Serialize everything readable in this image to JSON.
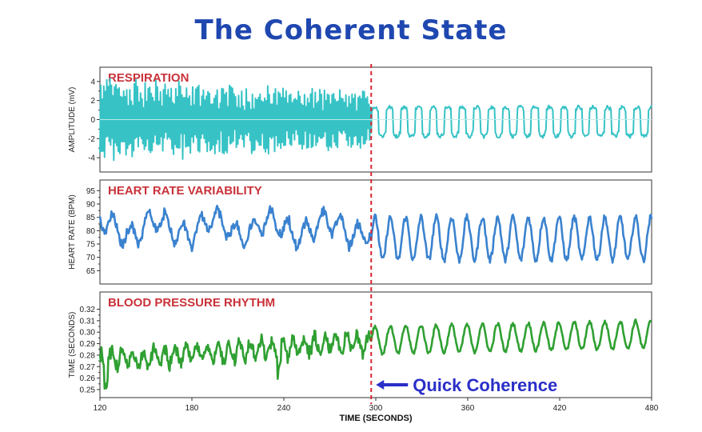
{
  "title": "The Coherent State",
  "colors": {
    "title": "#1f47b0",
    "panel_title": "#c8323a",
    "respiration": "#37c3c6",
    "hrv": "#3a82cf",
    "bp": "#2fa032",
    "marker": "#d8262f",
    "annotation": "#2a2fc8"
  },
  "annotation": {
    "text": "Quick Coherence",
    "arrow_icon": "left-arrow-icon"
  },
  "chart_data": [
    {
      "type": "line",
      "title": "RESPIRATION",
      "ylabel": "AMPLITUDE (mV)",
      "xlim": [
        120,
        480
      ],
      "ylim": [
        -5.5,
        5.5
      ],
      "yticks": [
        -4,
        -2,
        0,
        2,
        4
      ],
      "ytick_labels": [
        "-4",
        "-2",
        "0",
        "2",
        "4"
      ],
      "grid": false,
      "series": [
        {
          "x_start": 120,
          "x_end": 480,
          "pre_amplitude": 4.0,
          "post_amplitude": 1.6,
          "post_cycle_seconds": 9.5
        }
      ]
    },
    {
      "type": "line",
      "title": "HEART RATE VARIABILITY",
      "ylabel": "HEART RATE (BPM)",
      "xlim": [
        120,
        480
      ],
      "ylim": [
        60,
        99
      ],
      "yticks": [
        65,
        70,
        75,
        80,
        85,
        90,
        95
      ],
      "ytick_labels": [
        "65",
        "70",
        "75",
        "80",
        "85",
        "90",
        "95"
      ],
      "grid": false,
      "series": [
        {
          "x_start": 120,
          "x_end": 480,
          "pre_mean": 81,
          "pre_amplitude": 5,
          "post_mean": 77,
          "post_amplitude": 8,
          "post_cycle_seconds": 10
        }
      ]
    },
    {
      "type": "line",
      "title": "BLOOD PRESSURE RHYTHM",
      "ylabel": "TIME (SECONDS)",
      "xlim": [
        120,
        480
      ],
      "ylim": [
        0.243,
        0.335
      ],
      "yticks": [
        0.25,
        0.26,
        0.27,
        0.28,
        0.29,
        0.3,
        0.31,
        0.32
      ],
      "ytick_labels": [
        "0.25",
        "0.26",
        "0.27",
        "0.28",
        "0.29",
        "0.30",
        "0.31",
        "0.32"
      ],
      "grid": false,
      "series": [
        {
          "x_start": 120,
          "x_end": 480,
          "pre_mean_start": 0.275,
          "pre_mean_end": 0.292,
          "post_mean_start": 0.293,
          "post_mean_end": 0.298,
          "post_amplitude": 0.012,
          "post_cycle_seconds": 10
        }
      ]
    }
  ],
  "x_axis": {
    "label": "TIME (SECONDS)",
    "ticks": [
      120,
      180,
      240,
      300,
      360,
      420,
      480
    ],
    "tick_labels": [
      "120",
      "180",
      "240",
      "300",
      "360",
      "420",
      "480"
    ]
  },
  "marker_x": 297
}
